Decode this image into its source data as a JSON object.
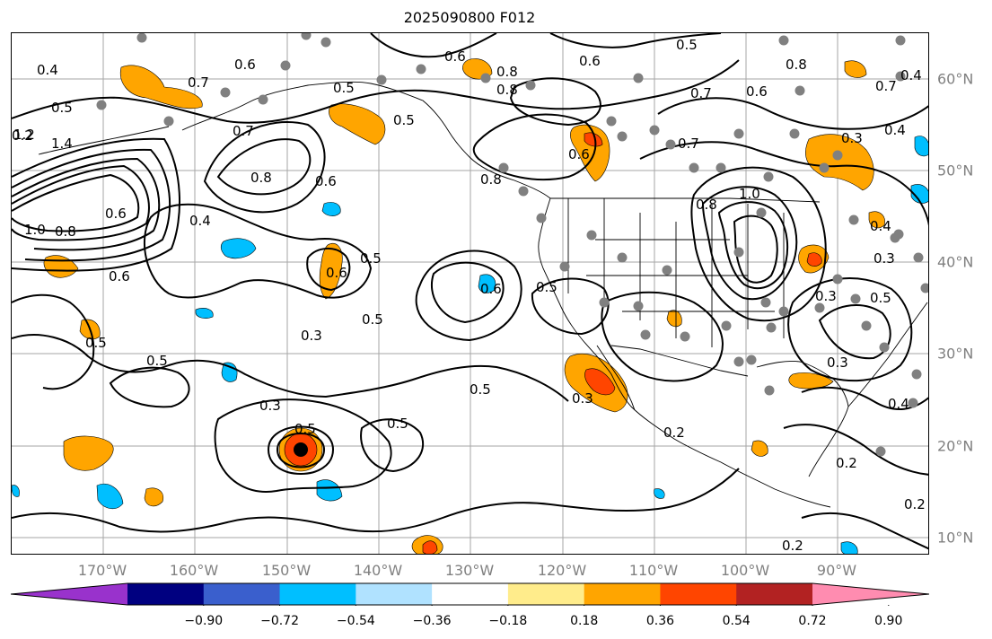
{
  "title": "2025090800 F012",
  "lon_labels": [
    "170°W",
    "160°W",
    "150°W",
    "140°W",
    "130°W",
    "120°W",
    "110°W",
    "100°W",
    "90°W"
  ],
  "lat_labels": [
    "60°N",
    "50°N",
    "40°N",
    "30°N",
    "20°N",
    "10°N"
  ],
  "colorbar": {
    "colors": [
      "#9932CC",
      "#000080",
      "#3A5FCD",
      "#00BFFF",
      "#B0E2FF",
      "#FFFFFF",
      "#FFEC8B",
      "#FFA500",
      "#FF4500",
      "#B22222",
      "#FF8CB0"
    ],
    "ticks": [
      "−0.90",
      "−0.72",
      "−0.54",
      "−0.36",
      "−0.18",
      "0.18",
      "0.36",
      "0.54",
      "0.72",
      "0.90"
    ]
  },
  "contour_labels": [
    "0.4",
    "0.5",
    "0.7",
    "0.8",
    "0.5",
    "0.6",
    "0.5",
    "0.5",
    "0.8",
    "0.6",
    "0.4",
    "0.2",
    "0.7",
    "0.6",
    "0.8",
    "0.4",
    "0.6",
    "1.0",
    "0.8",
    "1.0",
    "1.4",
    "1.2",
    "0.6",
    "0.4",
    "0.6",
    "0.5",
    "0.6",
    "0.5",
    "0.6",
    "0.5",
    "0.3",
    "0.5",
    "0.5",
    "0.3",
    "0.3",
    "0.5",
    "0.3",
    "0.5",
    "0.3",
    "0.2",
    "0.2",
    "0.4",
    "0.5",
    "0.2",
    "0.2",
    "0.6",
    "0.8",
    "0.7",
    "0.8",
    "0.7",
    "0.7",
    "0.4",
    "0.3",
    "0.3",
    "0.5",
    "0.8",
    "0.6"
  ],
  "colors": {
    "grid": "#808080",
    "contour": "#000000",
    "station": "#808080",
    "positive_fill": "#FFA500",
    "strong_positive_fill": "#FF4500",
    "negative_fill": "#00BFFF"
  }
}
